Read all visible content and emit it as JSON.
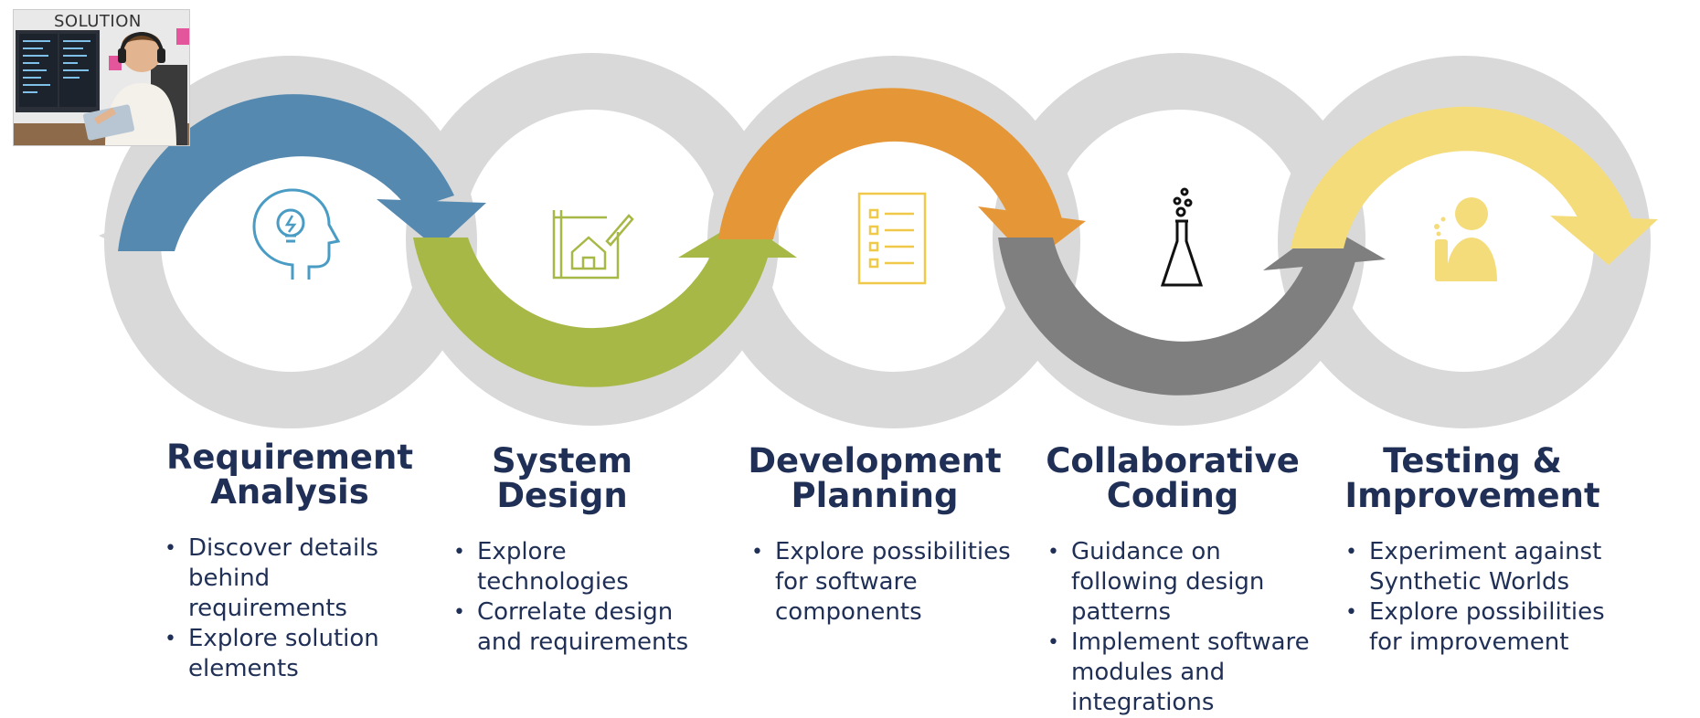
{
  "thumbnail": {
    "label": "SOLUTION"
  },
  "colors": {
    "ring_gray": "#d9d9d9",
    "blue": "#5589b0",
    "green": "#a8b846",
    "orange": "#e59738",
    "dark_gray": "#7f7f7f",
    "yellow": "#f5dc7b",
    "text": "#1f2f55"
  },
  "stages": [
    {
      "title_line1": "Requirement",
      "title_line2": "Analysis",
      "icon": "head-lightbulb-icon",
      "color": "#5589b0",
      "bullets": [
        "Discover details behind requirements",
        "Explore solution elements"
      ]
    },
    {
      "title_line1": "System",
      "title_line2": "Design",
      "icon": "house-blueprint-icon",
      "color": "#a8b846",
      "bullets": [
        "Explore technologies",
        "Correlate design and requirements"
      ]
    },
    {
      "title_line1": "Development",
      "title_line2": "Planning",
      "icon": "checklist-icon",
      "color": "#e59738",
      "bullets": [
        "Explore possibilities for software components"
      ]
    },
    {
      "title_line1": "Collaborative",
      "title_line2": "Coding",
      "icon": "flask-icon",
      "color": "#7f7f7f",
      "bullets": [
        "Guidance on following design patterns",
        "Implement software modules and integrations"
      ]
    },
    {
      "title_line1": "Testing &",
      "title_line2": "Improvement",
      "icon": "scientist-icon",
      "color": "#f5dc7b",
      "bullets": [
        "Experiment against Synthetic Worlds",
        "Explore possibilities for improvement"
      ]
    }
  ]
}
